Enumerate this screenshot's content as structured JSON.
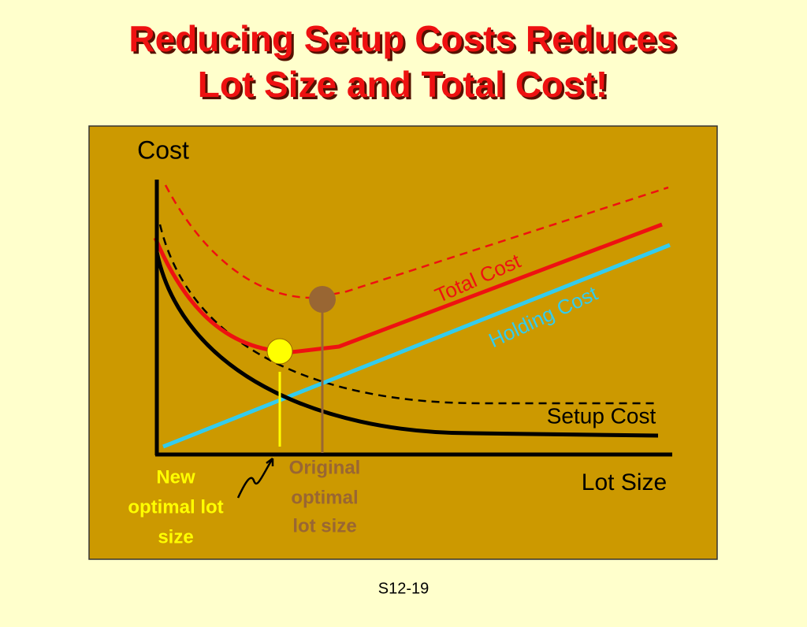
{
  "title": [
    "Reducing Setup Costs Reduces",
    "Lot Size and Total Cost!"
  ],
  "axes": {
    "y_label": "Cost",
    "x_label": "Lot Size"
  },
  "curves": {
    "total": "Total Cost",
    "holding": "Holding Cost",
    "setup": "Setup Cost"
  },
  "annotations": {
    "new": [
      "New",
      "optimal lot",
      "size"
    ],
    "original": [
      "Original",
      "optimal",
      "lot size"
    ]
  },
  "footer": "S12-19"
}
